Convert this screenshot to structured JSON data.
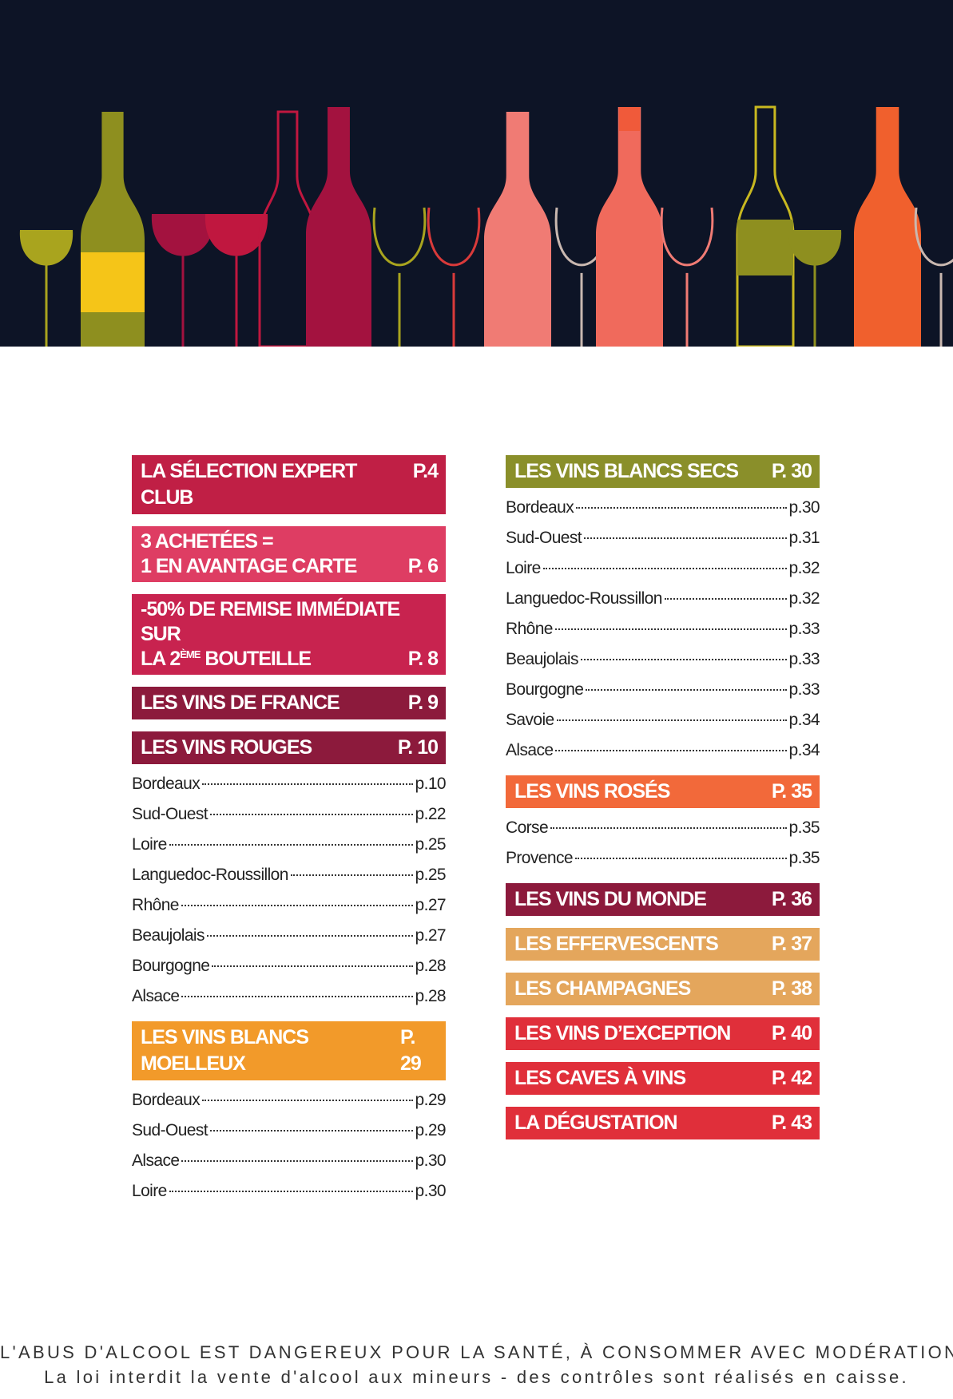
{
  "columns": [
    [
      {
        "title": [
          [
            "LA SÉLECTION EXPERT CLUB"
          ]
        ],
        "page": "P.4",
        "color": "#c01f45",
        "items": []
      },
      {
        "title": [
          [
            "3 ACHETÉES ="
          ],
          [
            "1 EN AVANTAGE CARTE"
          ]
        ],
        "page": "P. 6",
        "color": "#de3d63",
        "items": []
      },
      {
        "title": [
          [
            "-50% DE REMISE IMMÉDIATE SUR"
          ],
          [
            "LA 2",
            {
              "sup": "ÈME"
            },
            " BOUTEILLE"
          ]
        ],
        "page": "P. 8",
        "color": "#c8234f",
        "items": []
      },
      {
        "title": [
          [
            "LES VINS DE FRANCE"
          ]
        ],
        "page": "P. 9",
        "color": "#8c1a3c",
        "items": []
      },
      {
        "title": [
          [
            "LES VINS ROUGES"
          ]
        ],
        "page": "P. 10",
        "color": "#8c1a3c",
        "items": [
          {
            "name": "Bordeaux",
            "page": "p.10"
          },
          {
            "name": "Sud-Ouest",
            "page": "p.22"
          },
          {
            "name": "Loire",
            "page": "p.25"
          },
          {
            "name": "Languedoc-Roussillon",
            "page": "p.25"
          },
          {
            "name": "Rhône",
            "page": "p.27"
          },
          {
            "name": "Beaujolais",
            "page": "p.27"
          },
          {
            "name": "Bourgogne",
            "page": "p.28"
          },
          {
            "name": "Alsace",
            "page": "p.28"
          }
        ]
      },
      {
        "title": [
          [
            "LES VINS BLANCS MOELLEUX"
          ]
        ],
        "page": "P. 29",
        "color": "#f29a2a",
        "items": [
          {
            "name": "Bordeaux",
            "page": "p.29"
          },
          {
            "name": "Sud-Ouest",
            "page": "p.29"
          },
          {
            "name": "Alsace",
            "page": "p.30"
          },
          {
            "name": "Loire",
            "page": "p.30"
          }
        ]
      }
    ],
    [
      {
        "title": [
          [
            "LES VINS BLANCS SECS"
          ]
        ],
        "page": "P. 30",
        "color": "#8a8f2a",
        "items": [
          {
            "name": "Bordeaux",
            "page": "p.30"
          },
          {
            "name": "Sud-Ouest",
            "page": "p.31"
          },
          {
            "name": "Loire",
            "page": "p.32"
          },
          {
            "name": "Languedoc-Roussillon",
            "page": "p.32"
          },
          {
            "name": "Rhône",
            "page": "p.33"
          },
          {
            "name": "Beaujolais",
            "page": "p.33"
          },
          {
            "name": "Bourgogne",
            "page": "p.33"
          },
          {
            "name": "Savoie",
            "page": "p.34"
          },
          {
            "name": "Alsace",
            "page": "p.34"
          }
        ]
      },
      {
        "title": [
          [
            "LES VINS ROSÉS"
          ]
        ],
        "page": "P. 35",
        "color": "#f2693a",
        "items": [
          {
            "name": "Corse",
            "page": "p.35"
          },
          {
            "name": "Provence",
            "page": "p.35"
          }
        ]
      },
      {
        "title": [
          [
            "LES VINS DU MONDE"
          ]
        ],
        "page": "P. 36",
        "color": "#8c1a3c",
        "items": []
      },
      {
        "title": [
          [
            "LES EFFERVESCENTS"
          ]
        ],
        "page": "P. 37",
        "color": "#e4a65c",
        "items": []
      },
      {
        "title": [
          [
            "LES CHAMPAGNES"
          ]
        ],
        "page": "P. 38",
        "color": "#e4a65c",
        "items": []
      },
      {
        "title": [
          [
            "LES VINS D’EXCEPTION"
          ]
        ],
        "page": "P. 40",
        "color": "#e02f3a",
        "items": []
      },
      {
        "title": [
          [
            "LES CAVES À VINS"
          ]
        ],
        "page": "P. 42",
        "color": "#e02f3a",
        "items": []
      },
      {
        "title": [
          [
            "LA DÉGUSTATION"
          ]
        ],
        "page": "P. 43",
        "color": "#e02f3a",
        "items": []
      }
    ]
  ],
  "footer": {
    "line1": "L'ABUS D'ALCOOL EST DANGEREUX POUR LA SANTÉ, À CONSOMMER AVEC MODÉRATION",
    "line2": "La loi interdit la vente d'alcool aux mineurs - des contrôles sont réalisés en caisse."
  }
}
